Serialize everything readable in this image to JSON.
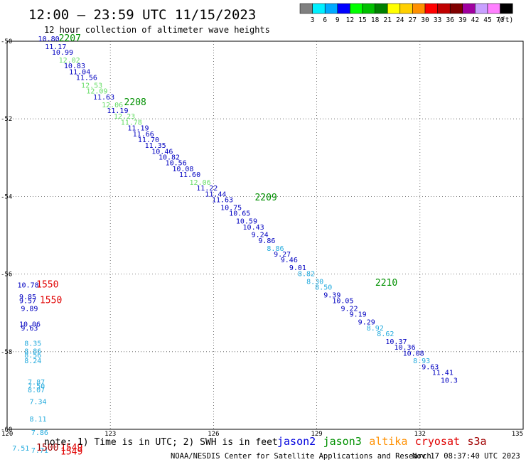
{
  "header": {
    "title": "12:00 — 23:59 UTC 11/15/2023",
    "subtitle": "12 hour collection of altimeter wave heights"
  },
  "legend": {
    "unit": "(ft)",
    "bins": [
      {
        "label": "3",
        "color": "#808080"
      },
      {
        "label": "6",
        "color": "#00f0ff"
      },
      {
        "label": "9",
        "color": "#00aaff"
      },
      {
        "label": "12",
        "color": "#0000ff"
      },
      {
        "label": "15",
        "color": "#00ff00"
      },
      {
        "label": "18",
        "color": "#00c000"
      },
      {
        "label": "21",
        "color": "#008000"
      },
      {
        "label": "24",
        "color": "#ffff00"
      },
      {
        "label": "27",
        "color": "#ffd000"
      },
      {
        "label": "30",
        "color": "#ff9000"
      },
      {
        "label": "33",
        "color": "#ff0000"
      },
      {
        "label": "36",
        "color": "#c00000"
      },
      {
        "label": "39",
        "color": "#800000"
      },
      {
        "label": "42",
        "color": "#a000a0"
      },
      {
        "label": "45",
        "color": "#c8a0ff"
      },
      {
        "label": "70",
        "color": "#ff80ff"
      },
      {
        "label": "",
        "color": "#000000"
      }
    ]
  },
  "footer": {
    "note": "note: 1) Time is in UTC; 2) SWH is in feet",
    "credit": "NOAA/NESDIS Center for Satellite Applications and Research",
    "timestamp": "Nov 17 08:37:40 UTC 2023",
    "satellites": [
      {
        "name": "jason2",
        "color": "#0000dd"
      },
      {
        "name": "jason3",
        "color": "#009000"
      },
      {
        "name": "altika",
        "color": "#ff9000"
      },
      {
        "name": "cryosat",
        "color": "#e00000"
      },
      {
        "name": "s3a",
        "color": "#a00000"
      }
    ]
  },
  "colors": {
    "jason2": "#0000c0",
    "jason3": "#009000",
    "lightgreen": "#66dd66",
    "cyan": "#22aadd",
    "red": "#e00000",
    "darkred": "#a00000"
  },
  "chart_data": {
    "type": "scatter",
    "xlim": [
      120,
      135
    ],
    "ylim": [
      -60,
      -50
    ],
    "xticks": [
      120,
      123,
      126,
      129,
      132,
      135
    ],
    "yticks": [
      -50,
      -52,
      -54,
      -56,
      -58,
      -60
    ],
    "grid": true,
    "points": [
      {
        "x": 120.9,
        "y": -50.0,
        "v": "10.80",
        "c": "jason2"
      },
      {
        "x": 121.1,
        "y": -50.2,
        "v": "11.17",
        "c": "jason2"
      },
      {
        "x": 121.3,
        "y": -50.35,
        "v": "10.99",
        "c": "jason2"
      },
      {
        "x": 121.5,
        "y": -50.55,
        "v": "12.02",
        "c": "lightgreen"
      },
      {
        "x": 121.65,
        "y": -50.7,
        "v": "10.83",
        "c": "jason2"
      },
      {
        "x": 121.8,
        "y": -50.85,
        "v": "11.04",
        "c": "jason2"
      },
      {
        "x": 122.0,
        "y": -51.0,
        "v": "11.56",
        "c": "jason2"
      },
      {
        "x": 122.15,
        "y": -51.2,
        "v": "12.53",
        "c": "lightgreen"
      },
      {
        "x": 122.3,
        "y": -51.35,
        "v": "12.09",
        "c": "lightgreen"
      },
      {
        "x": 122.5,
        "y": -51.5,
        "v": "11.63",
        "c": "jason2"
      },
      {
        "x": 122.75,
        "y": -51.7,
        "v": "12.06",
        "c": "lightgreen"
      },
      {
        "x": 122.9,
        "y": -51.85,
        "v": "11.19",
        "c": "jason2"
      },
      {
        "x": 123.1,
        "y": -52.0,
        "v": "12.23",
        "c": "lightgreen"
      },
      {
        "x": 123.3,
        "y": -52.15,
        "v": "11.78",
        "c": "lightgreen"
      },
      {
        "x": 123.5,
        "y": -52.3,
        "v": "11.19",
        "c": "jason2"
      },
      {
        "x": 123.65,
        "y": -52.45,
        "v": "11.66",
        "c": "jason2"
      },
      {
        "x": 123.8,
        "y": -52.6,
        "v": "11.70",
        "c": "jason2"
      },
      {
        "x": 124.0,
        "y": -52.75,
        "v": "11.35",
        "c": "jason2"
      },
      {
        "x": 124.2,
        "y": -52.9,
        "v": "10.46",
        "c": "jason2"
      },
      {
        "x": 124.4,
        "y": -53.05,
        "v": "10.82",
        "c": "jason2"
      },
      {
        "x": 124.6,
        "y": -53.2,
        "v": "10.56",
        "c": "jason2"
      },
      {
        "x": 124.8,
        "y": -53.35,
        "v": "10.08",
        "c": "jason2"
      },
      {
        "x": 125.0,
        "y": -53.5,
        "v": "11.60",
        "c": "jason2"
      },
      {
        "x": 125.3,
        "y": -53.7,
        "v": "12.06",
        "c": "lightgreen"
      },
      {
        "x": 125.5,
        "y": -53.85,
        "v": "11.22",
        "c": "jason2"
      },
      {
        "x": 125.75,
        "y": -54.0,
        "v": "11.44",
        "c": "jason2"
      },
      {
        "x": 125.95,
        "y": -54.15,
        "v": "11.63",
        "c": "jason2"
      },
      {
        "x": 126.2,
        "y": -54.35,
        "v": "10.75",
        "c": "jason2"
      },
      {
        "x": 126.45,
        "y": -54.5,
        "v": "10.65",
        "c": "jason2"
      },
      {
        "x": 126.65,
        "y": -54.7,
        "v": "10.59",
        "c": "jason2"
      },
      {
        "x": 126.85,
        "y": -54.85,
        "v": "10.43",
        "c": "jason2"
      },
      {
        "x": 127.1,
        "y": -55.05,
        "v": "9.24",
        "c": "jason2"
      },
      {
        "x": 127.3,
        "y": -55.2,
        "v": "9.86",
        "c": "jason2"
      },
      {
        "x": 127.55,
        "y": -55.4,
        "v": "8.86",
        "c": "cyan"
      },
      {
        "x": 127.75,
        "y": -55.55,
        "v": "9.27",
        "c": "jason2"
      },
      {
        "x": 127.95,
        "y": -55.7,
        "v": "9.46",
        "c": "jason2"
      },
      {
        "x": 128.2,
        "y": -55.9,
        "v": "9.01",
        "c": "jason2"
      },
      {
        "x": 128.45,
        "y": -56.05,
        "v": "8.82",
        "c": "cyan"
      },
      {
        "x": 128.7,
        "y": -56.25,
        "v": "8.30",
        "c": "cyan"
      },
      {
        "x": 128.95,
        "y": -56.4,
        "v": "8.50",
        "c": "cyan"
      },
      {
        "x": 129.2,
        "y": -56.6,
        "v": "9.39",
        "c": "jason2"
      },
      {
        "x": 129.45,
        "y": -56.75,
        "v": "10.05",
        "c": "jason2"
      },
      {
        "x": 129.7,
        "y": -56.95,
        "v": "9.22",
        "c": "jason2"
      },
      {
        "x": 129.95,
        "y": -57.1,
        "v": "9.19",
        "c": "jason2"
      },
      {
        "x": 130.2,
        "y": -57.3,
        "v": "9.29",
        "c": "jason2"
      },
      {
        "x": 130.45,
        "y": -57.45,
        "v": "8.92",
        "c": "cyan"
      },
      {
        "x": 130.75,
        "y": -57.6,
        "v": "8.62",
        "c": "cyan"
      },
      {
        "x": 131.0,
        "y": -57.8,
        "v": "10.37",
        "c": "jason2"
      },
      {
        "x": 131.25,
        "y": -57.95,
        "v": "10.36",
        "c": "jason2"
      },
      {
        "x": 131.5,
        "y": -58.1,
        "v": "10.08",
        "c": "jason2"
      },
      {
        "x": 131.8,
        "y": -58.3,
        "v": "8.93",
        "c": "cyan"
      },
      {
        "x": 132.05,
        "y": -58.45,
        "v": "9.63",
        "c": "jason2"
      },
      {
        "x": 132.35,
        "y": -58.6,
        "v": "11.41",
        "c": "jason2"
      },
      {
        "x": 132.6,
        "y": -58.8,
        "v": "10.3",
        "c": "jason2"
      },
      {
        "x": 120.3,
        "y": -56.35,
        "v": "10.78",
        "c": "jason2"
      },
      {
        "x": 120.35,
        "y": -56.65,
        "v": "9.85",
        "c": "jason2"
      },
      {
        "x": 120.35,
        "y": -56.75,
        "v": "9.57",
        "c": "jason2"
      },
      {
        "x": 120.4,
        "y": -56.95,
        "v": "9.89",
        "c": "jason2"
      },
      {
        "x": 120.35,
        "y": -57.35,
        "v": "10.06",
        "c": "jason2"
      },
      {
        "x": 120.4,
        "y": -57.45,
        "v": "9.63",
        "c": "jason2"
      },
      {
        "x": 120.5,
        "y": -57.85,
        "v": "8.35",
        "c": "cyan"
      },
      {
        "x": 120.5,
        "y": -58.05,
        "v": "8.86",
        "c": "cyan"
      },
      {
        "x": 120.5,
        "y": -58.15,
        "v": "8.56",
        "c": "cyan"
      },
      {
        "x": 120.5,
        "y": -58.3,
        "v": "8.24",
        "c": "cyan"
      },
      {
        "x": 120.6,
        "y": -58.85,
        "v": "7.87",
        "c": "cyan"
      },
      {
        "x": 120.6,
        "y": -58.95,
        "v": "7.50",
        "c": "cyan"
      },
      {
        "x": 120.6,
        "y": -59.05,
        "v": "8.07",
        "c": "cyan"
      },
      {
        "x": 120.65,
        "y": -59.35,
        "v": "7.34",
        "c": "cyan"
      },
      {
        "x": 120.65,
        "y": -59.8,
        "v": "8.11",
        "c": "cyan"
      },
      {
        "x": 120.7,
        "y": -60.15,
        "v": "7.86",
        "c": "cyan"
      },
      {
        "x": 120.15,
        "y": -60.55,
        "v": "7.51",
        "c": "cyan"
      },
      {
        "x": 120.7,
        "y": -60.6,
        "v": "7.71",
        "c": "cyan"
      }
    ],
    "annotations": [
      {
        "x": 121.5,
        "y": -50.0,
        "text": "2207",
        "c": "jason3"
      },
      {
        "x": 123.4,
        "y": -51.65,
        "text": "2208",
        "c": "jason3"
      },
      {
        "x": 127.2,
        "y": -54.1,
        "text": "2209",
        "c": "jason3"
      },
      {
        "x": 130.7,
        "y": -56.3,
        "text": "2210",
        "c": "jason3"
      },
      {
        "x": 120.85,
        "y": -56.35,
        "text": "1550",
        "c": "red"
      },
      {
        "x": 120.95,
        "y": -56.75,
        "text": "1550",
        "c": "red"
      },
      {
        "x": 120.85,
        "y": -60.55,
        "text": "1500",
        "c": "darkred"
      },
      {
        "x": 121.55,
        "y": -60.55,
        "text": "1549",
        "c": "red"
      },
      {
        "x": 121.55,
        "y": -60.65,
        "text": "1549",
        "c": "red"
      }
    ]
  }
}
